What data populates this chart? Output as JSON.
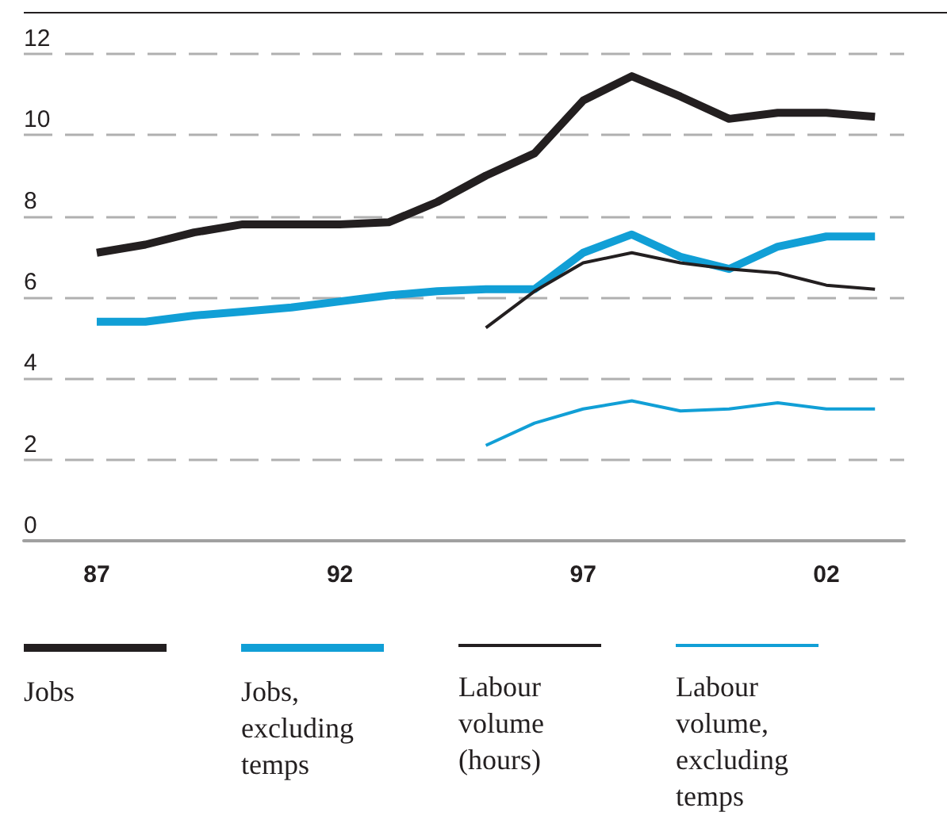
{
  "chart_data": {
    "type": "line",
    "x": [
      1987,
      1988,
      1989,
      1990,
      1991,
      1992,
      1993,
      1994,
      1995,
      1996,
      1997,
      1998,
      1999,
      2000,
      2001,
      2002,
      2003
    ],
    "series": [
      {
        "name": "Jobs",
        "color": "#231f20",
        "values": [
          7.1,
          7.3,
          7.6,
          7.8,
          7.8,
          7.8,
          7.85,
          8.35,
          9.0,
          9.55,
          10.85,
          11.45,
          10.95,
          10.4,
          10.55,
          10.55,
          10.45
        ]
      },
      {
        "name": "Jobs, excluding temps",
        "color": "#119fd6",
        "values": [
          5.4,
          5.4,
          5.55,
          5.65,
          5.75,
          5.9,
          6.05,
          6.15,
          6.2,
          6.2,
          7.1,
          7.55,
          7.0,
          6.7,
          7.25,
          7.5,
          7.5
        ]
      },
      {
        "name": "Labour volume (hours)",
        "color": "#231f20",
        "values": [
          null,
          null,
          null,
          null,
          null,
          null,
          null,
          null,
          5.25,
          6.15,
          6.85,
          7.1,
          6.85,
          6.7,
          6.6,
          6.3,
          6.2
        ]
      },
      {
        "name": "Labour volume, excluding temps",
        "color": "#119fd6",
        "values": [
          null,
          null,
          null,
          null,
          null,
          null,
          null,
          null,
          2.35,
          2.9,
          3.25,
          3.45,
          3.2,
          3.25,
          3.4,
          3.25,
          3.25
        ]
      }
    ],
    "xlim": [
      1985.5,
      2003.6
    ],
    "xticks": [
      {
        "value": 1987,
        "label": "87"
      },
      {
        "value": 1992,
        "label": "92"
      },
      {
        "value": 1997,
        "label": "97"
      },
      {
        "value": 2002,
        "label": "02"
      }
    ],
    "ylim": [
      0,
      12
    ],
    "yticks": [
      0,
      2,
      4,
      6,
      8,
      10,
      12
    ],
    "grid": "y",
    "legend": "bottom",
    "marker": "none",
    "line_style": "solid"
  }
}
